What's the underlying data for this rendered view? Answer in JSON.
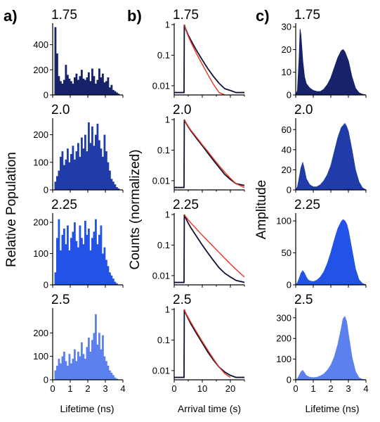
{
  "figure": {
    "panel_labels": [
      "a)",
      "b)",
      "c)"
    ],
    "col_a": {
      "ylabel": "Relative Population",
      "xlabel": "Lifetime (ns)"
    },
    "col_b": {
      "ylabel": "Counts (normalized)",
      "xlabel": "Arrival time (s)"
    },
    "col_c": {
      "ylabel": "Amplitude",
      "xlabel": "Lifetime (ns)"
    },
    "row_values": [
      "1.75",
      "2.0",
      "2.25",
      "2.5"
    ],
    "row_colors": [
      "#16236a",
      "#1f3ca8",
      "#2352e6",
      "#5c80ee"
    ],
    "fit_color": "#e8311d",
    "decay_color": "#0c1033"
  },
  "chart_data": [
    {
      "type": "bar",
      "panel": "a",
      "row": "1.75",
      "xlim": [
        0,
        4
      ],
      "ylim": [
        0,
        560
      ],
      "xticks": [
        "0",
        "1",
        "2",
        "3",
        "4"
      ],
      "yticks": [
        "0",
        "200",
        "400"
      ],
      "bin_width": 0.1,
      "x": [
        0.15,
        0.25,
        0.35,
        0.45,
        0.55,
        0.65,
        0.75,
        0.85,
        0.95,
        1.05,
        1.15,
        1.25,
        1.35,
        1.45,
        1.55,
        1.65,
        1.75,
        1.85,
        1.95,
        2.05,
        2.15,
        2.25,
        2.35,
        2.45,
        2.55,
        2.65,
        2.75,
        2.85,
        2.95,
        3.05,
        3.15,
        3.25,
        3.35,
        3.45,
        3.55,
        3.65,
        3.75
      ],
      "values": [
        540,
        330,
        150,
        110,
        90,
        120,
        240,
        160,
        130,
        110,
        90,
        140,
        170,
        120,
        150,
        200,
        130,
        120,
        140,
        180,
        110,
        210,
        150,
        90,
        120,
        210,
        140,
        170,
        100,
        110,
        140,
        60,
        80,
        40,
        30,
        20,
        10
      ]
    },
    {
      "type": "bar",
      "panel": "a",
      "row": "2.0",
      "xlim": [
        0,
        4
      ],
      "ylim": [
        0,
        255
      ],
      "xticks": [
        "0",
        "1",
        "2",
        "3",
        "4"
      ],
      "yticks": [
        "0",
        "100",
        "200"
      ],
      "bin_width": 0.1,
      "x": [
        0.15,
        0.25,
        0.35,
        0.45,
        0.55,
        0.65,
        0.75,
        0.85,
        0.95,
        1.05,
        1.15,
        1.25,
        1.35,
        1.45,
        1.55,
        1.65,
        1.75,
        1.85,
        1.95,
        2.05,
        2.15,
        2.25,
        2.35,
        2.45,
        2.55,
        2.65,
        2.75,
        2.85,
        2.95,
        3.05,
        3.15,
        3.25,
        3.35,
        3.45,
        3.55,
        3.65,
        3.75
      ],
      "values": [
        30,
        50,
        70,
        120,
        140,
        90,
        110,
        150,
        100,
        130,
        160,
        110,
        140,
        170,
        120,
        190,
        150,
        200,
        140,
        245,
        170,
        230,
        160,
        200,
        240,
        180,
        150,
        120,
        200,
        140,
        100,
        70,
        40,
        30,
        20,
        10,
        5
      ]
    },
    {
      "type": "bar",
      "panel": "a",
      "row": "2.25",
      "xlim": [
        0,
        4
      ],
      "ylim": [
        0,
        225
      ],
      "xticks": [
        "0",
        "1",
        "2",
        "3",
        "4"
      ],
      "yticks": [
        "0",
        "100",
        "200"
      ],
      "bin_width": 0.1,
      "x": [
        0.15,
        0.25,
        0.35,
        0.45,
        0.55,
        0.65,
        0.75,
        0.85,
        0.95,
        1.05,
        1.15,
        1.25,
        1.35,
        1.45,
        1.55,
        1.65,
        1.75,
        1.85,
        1.95,
        2.05,
        2.15,
        2.25,
        2.35,
        2.45,
        2.55,
        2.65,
        2.75,
        2.85,
        2.95,
        3.05,
        3.15,
        3.25,
        3.35,
        3.45,
        3.55,
        3.65,
        3.75
      ],
      "values": [
        40,
        150,
        210,
        110,
        160,
        180,
        130,
        190,
        110,
        150,
        170,
        200,
        140,
        120,
        190,
        150,
        130,
        205,
        160,
        180,
        110,
        150,
        170,
        210,
        130,
        160,
        190,
        100,
        120,
        80,
        60,
        40,
        30,
        20,
        10,
        5,
        0
      ]
    },
    {
      "type": "bar",
      "panel": "a",
      "row": "2.5",
      "xlim": [
        0,
        4
      ],
      "ylim": [
        0,
        300
      ],
      "xticks": [
        "0",
        "1",
        "2",
        "3",
        "4"
      ],
      "yticks": [
        "0",
        "100",
        "200"
      ],
      "bin_width": 0.1,
      "x": [
        0.15,
        0.25,
        0.35,
        0.45,
        0.55,
        0.65,
        0.75,
        0.85,
        0.95,
        1.05,
        1.15,
        1.25,
        1.35,
        1.45,
        1.55,
        1.65,
        1.75,
        1.85,
        1.95,
        2.05,
        2.15,
        2.25,
        2.35,
        2.45,
        2.55,
        2.65,
        2.75,
        2.85,
        2.95,
        3.05,
        3.15,
        3.25,
        3.35,
        3.45,
        3.55,
        3.65,
        3.75
      ],
      "values": [
        40,
        60,
        90,
        70,
        100,
        120,
        80,
        60,
        110,
        70,
        90,
        130,
        80,
        120,
        100,
        160,
        110,
        90,
        140,
        180,
        120,
        170,
        200,
        280,
        150,
        200,
        130,
        190,
        100,
        80,
        60,
        40,
        30,
        20,
        10,
        5,
        0
      ]
    },
    {
      "type": "line",
      "panel": "b",
      "row": "1.75",
      "yscale": "log",
      "xlim": [
        0,
        25
      ],
      "ylim": [
        0.005,
        1
      ],
      "xticks": [
        "0",
        "10",
        "20"
      ],
      "yticks": [
        "0.01",
        "0.1",
        "1"
      ],
      "series": [
        {
          "role": "data",
          "color": "#0c1033",
          "x": [
            0,
            3.5,
            3.6,
            4,
            5,
            6,
            8,
            10,
            12,
            14,
            16,
            18,
            20,
            22,
            25
          ],
          "values": [
            0.006,
            0.006,
            1,
            0.75,
            0.45,
            0.3,
            0.14,
            0.07,
            0.036,
            0.02,
            0.012,
            0.008,
            0.007,
            0.006,
            0.006
          ]
        },
        {
          "role": "fit",
          "color": "#e8311d",
          "x": [
            3.6,
            4,
            5,
            6,
            8,
            10,
            12,
            14,
            16,
            18
          ],
          "values": [
            1,
            0.72,
            0.42,
            0.26,
            0.11,
            0.05,
            0.023,
            0.011,
            0.006,
            0.004
          ]
        }
      ]
    },
    {
      "type": "line",
      "panel": "b",
      "row": "2.0",
      "yscale": "log",
      "xlim": [
        0,
        25
      ],
      "ylim": [
        0.005,
        1
      ],
      "xticks": [
        "0",
        "10",
        "20"
      ],
      "yticks": [
        "0.01",
        "0.1",
        "1"
      ],
      "series": [
        {
          "role": "data",
          "color": "#0c1033",
          "x": [
            0,
            3.5,
            3.6,
            4,
            5,
            6,
            8,
            10,
            12,
            14,
            16,
            18,
            20,
            22,
            25
          ],
          "values": [
            0.006,
            0.006,
            1,
            0.82,
            0.58,
            0.42,
            0.24,
            0.14,
            0.08,
            0.046,
            0.027,
            0.016,
            0.011,
            0.008,
            0.007
          ]
        },
        {
          "role": "fit",
          "color": "#e8311d",
          "x": [
            3.6,
            4,
            5,
            6,
            8,
            10,
            12,
            14,
            16,
            18,
            20,
            22,
            25
          ],
          "values": [
            1,
            0.84,
            0.6,
            0.44,
            0.26,
            0.15,
            0.09,
            0.052,
            0.031,
            0.019,
            0.012,
            0.008,
            0.006
          ]
        }
      ]
    },
    {
      "type": "line",
      "panel": "b",
      "row": "2.25",
      "yscale": "log",
      "xlim": [
        0,
        25
      ],
      "ylim": [
        0.005,
        1
      ],
      "xticks": [
        "0",
        "10",
        "20"
      ],
      "yticks": [
        "0.01",
        "0.1",
        "1"
      ],
      "series": [
        {
          "role": "data",
          "color": "#0c1033",
          "x": [
            0,
            3.5,
            3.6,
            4,
            5,
            6,
            8,
            10,
            12,
            14,
            16,
            18,
            20,
            22,
            25
          ],
          "values": [
            0.006,
            0.006,
            1,
            0.8,
            0.52,
            0.36,
            0.19,
            0.1,
            0.055,
            0.031,
            0.018,
            0.012,
            0.009,
            0.007,
            0.006
          ]
        },
        {
          "role": "fit",
          "color": "#e8311d",
          "x": [
            3.6,
            4,
            5,
            6,
            8,
            10,
            12,
            14,
            16,
            18,
            20,
            22,
            25
          ],
          "values": [
            1,
            0.87,
            0.67,
            0.52,
            0.33,
            0.21,
            0.135,
            0.088,
            0.057,
            0.037,
            0.024,
            0.016,
            0.009
          ]
        }
      ]
    },
    {
      "type": "line",
      "panel": "b",
      "row": "2.5",
      "yscale": "log",
      "xlim": [
        0,
        25
      ],
      "ylim": [
        0.005,
        1
      ],
      "xticks": [
        "0",
        "10",
        "20"
      ],
      "yticks": [
        "0.01",
        "0.1",
        "1"
      ],
      "series": [
        {
          "role": "data",
          "color": "#0c1033",
          "x": [
            0,
            3.5,
            3.6,
            4,
            5,
            6,
            8,
            10,
            12,
            14,
            16,
            18,
            20,
            22,
            25
          ],
          "values": [
            0.006,
            0.006,
            1,
            0.78,
            0.5,
            0.33,
            0.16,
            0.08,
            0.04,
            0.022,
            0.013,
            0.009,
            0.007,
            0.006,
            0.006
          ]
        },
        {
          "role": "fit",
          "color": "#e8311d",
          "x": [
            3.6,
            4,
            5,
            6,
            8,
            10,
            12,
            14,
            16,
            18,
            20
          ],
          "values": [
            1,
            0.8,
            0.54,
            0.37,
            0.18,
            0.09,
            0.046,
            0.024,
            0.013,
            0.008,
            0.006
          ]
        }
      ]
    },
    {
      "type": "area",
      "panel": "c",
      "row": "1.75",
      "xlim": [
        0,
        4
      ],
      "ylim": [
        0,
        31
      ],
      "xticks": [
        "0",
        "1",
        "2",
        "3",
        "4"
      ],
      "yticks": [
        "0",
        "10",
        "20",
        "30"
      ],
      "x": [
        0,
        0.1,
        0.2,
        0.25,
        0.3,
        0.4,
        0.5,
        0.6,
        0.8,
        1.0,
        1.2,
        1.4,
        1.6,
        1.8,
        2.0,
        2.2,
        2.4,
        2.6,
        2.7,
        2.8,
        3.0,
        3.2,
        3.4,
        3.6,
        3.8,
        4.0
      ],
      "values": [
        0,
        2,
        17,
        29,
        26,
        15,
        8,
        5,
        3,
        2,
        1.5,
        1.5,
        2.5,
        4.5,
        7.5,
        12,
        16.5,
        19.5,
        20,
        19,
        15,
        8,
        3,
        1,
        0.3,
        0
      ]
    },
    {
      "type": "area",
      "panel": "c",
      "row": "2.0",
      "xlim": [
        0,
        4
      ],
      "ylim": [
        0,
        70
      ],
      "xticks": [
        "0",
        "1",
        "2",
        "3",
        "4"
      ],
      "yticks": [
        "0",
        "20",
        "40",
        "60"
      ],
      "x": [
        0,
        0.1,
        0.2,
        0.3,
        0.4,
        0.5,
        0.6,
        0.8,
        1.0,
        1.2,
        1.4,
        1.6,
        1.8,
        2.0,
        2.2,
        2.4,
        2.6,
        2.8,
        2.9,
        3.0,
        3.2,
        3.4,
        3.6,
        3.8,
        4.0
      ],
      "values": [
        0,
        3,
        12,
        22,
        27,
        20,
        11,
        5,
        3,
        3,
        5,
        9,
        15,
        24,
        38,
        52,
        62,
        66,
        63,
        58,
        40,
        20,
        8,
        2,
        0
      ]
    },
    {
      "type": "area",
      "panel": "c",
      "row": "2.25",
      "xlim": [
        0,
        4
      ],
      "ylim": [
        0,
        110
      ],
      "xticks": [
        "0",
        "1",
        "2",
        "3",
        "4"
      ],
      "yticks": [
        "0",
        "50",
        "100"
      ],
      "x": [
        0,
        0.1,
        0.2,
        0.3,
        0.4,
        0.5,
        0.6,
        0.7,
        0.8,
        1.0,
        1.2,
        1.4,
        1.6,
        1.8,
        2.0,
        2.2,
        2.4,
        2.6,
        2.7,
        2.8,
        2.9,
        3.0,
        3.2,
        3.4,
        3.6,
        3.8,
        4.0
      ],
      "values": [
        0,
        3,
        10,
        18,
        22,
        18,
        12,
        8,
        6,
        5,
        7,
        12,
        20,
        33,
        50,
        70,
        88,
        99,
        102,
        100,
        95,
        85,
        55,
        25,
        8,
        2,
        0
      ]
    },
    {
      "type": "area",
      "panel": "c",
      "row": "2.5",
      "xlim": [
        0,
        4
      ],
      "ylim": [
        0,
        340
      ],
      "xticks": [
        "0",
        "1",
        "2",
        "3",
        "4"
      ],
      "yticks": [
        "0",
        "100",
        "200",
        "300"
      ],
      "x": [
        0,
        0.1,
        0.2,
        0.3,
        0.4,
        0.5,
        0.6,
        0.8,
        1.0,
        1.2,
        1.4,
        1.6,
        1.8,
        2.0,
        2.2,
        2.4,
        2.6,
        2.7,
        2.8,
        2.9,
        3.0,
        3.2,
        3.4,
        3.6,
        3.8,
        4.0
      ],
      "values": [
        0,
        5,
        20,
        38,
        45,
        33,
        20,
        12,
        10,
        12,
        18,
        28,
        45,
        70,
        110,
        170,
        250,
        295,
        305,
        280,
        220,
        110,
        40,
        10,
        2,
        0
      ]
    }
  ]
}
